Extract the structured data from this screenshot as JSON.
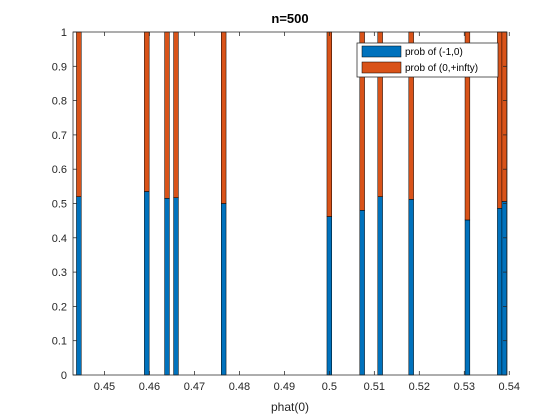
{
  "chart_data": {
    "type": "bar",
    "stacked": true,
    "title": "n=500",
    "xlabel": "phat(0)",
    "ylabel": "",
    "xlim": [
      0.443,
      0.5395
    ],
    "ylim": [
      0,
      1
    ],
    "xticks": [
      0.45,
      0.46,
      0.47,
      0.48,
      0.49,
      0.5,
      0.51,
      0.52,
      0.53,
      0.54
    ],
    "xtick_labels": [
      "0.45",
      "0.46",
      "0.47",
      "0.48",
      "0.49",
      "0.5",
      "0.51",
      "0.52",
      "0.53",
      "0.54"
    ],
    "yticks": [
      0,
      0.1,
      0.2,
      0.3,
      0.4,
      0.5,
      0.6,
      0.7,
      0.8,
      0.9,
      1
    ],
    "ytick_labels": [
      "0",
      "0.1",
      "0.2",
      "0.3",
      "0.4",
      "0.5",
      "0.6",
      "0.7",
      "0.8",
      "0.9",
      "1"
    ],
    "legend_position": "top-right",
    "x": [
      0.4443,
      0.4594,
      0.4639,
      0.4659,
      0.4765,
      0.5,
      0.5073,
      0.5113,
      0.5182,
      0.5307,
      0.5379,
      0.5389
    ],
    "series": [
      {
        "name": "prob of (-1,0)",
        "color": "#0072BD",
        "values": [
          0.52,
          0.535,
          0.515,
          0.517,
          0.5,
          0.462,
          0.48,
          0.52,
          0.512,
          0.452,
          0.486,
          0.506
        ]
      },
      {
        "name": "prob of (0,+infty)",
        "color": "#D95319",
        "values": [
          0.48,
          0.465,
          0.485,
          0.483,
          0.5,
          0.538,
          0.52,
          0.48,
          0.488,
          0.548,
          0.514,
          0.494
        ]
      }
    ]
  }
}
